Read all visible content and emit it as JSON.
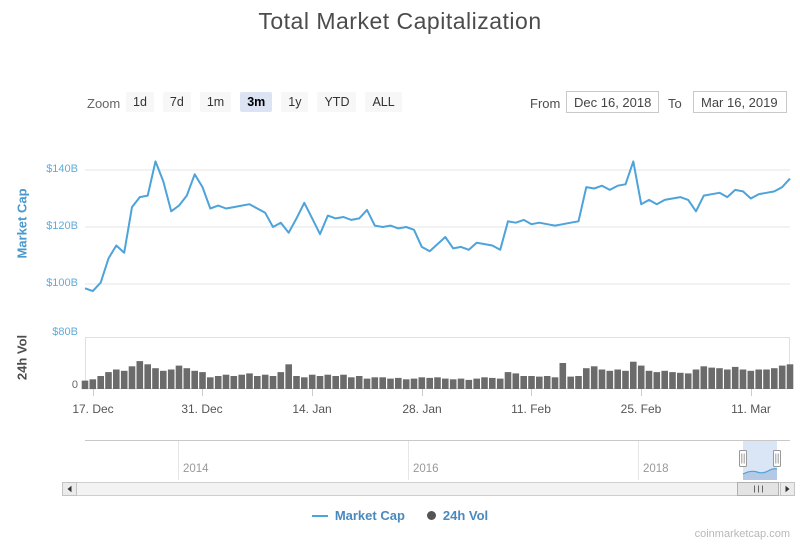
{
  "title": "Total Market Capitalization",
  "watermark": "coinmarketcap.com",
  "range_selector": {
    "zoom_label": "Zoom",
    "buttons": [
      {
        "label": "1d",
        "selected": false
      },
      {
        "label": "7d",
        "selected": false
      },
      {
        "label": "1m",
        "selected": false
      },
      {
        "label": "3m",
        "selected": true
      },
      {
        "label": "1y",
        "selected": false
      },
      {
        "label": "YTD",
        "selected": false
      },
      {
        "label": "ALL",
        "selected": false
      }
    ],
    "from_label": "From",
    "from_value": "Dec 16, 2018",
    "to_label": "To",
    "to_value": "Mar 16, 2019"
  },
  "legend": {
    "items": [
      {
        "label": "Market Cap",
        "marker": "line",
        "color": "#4da3da"
      },
      {
        "label": "24h Vol",
        "marker": "circle",
        "color": "#545454"
      }
    ]
  },
  "navigator": {
    "year_labels": [
      "2014",
      "2016",
      "2018"
    ]
  },
  "chart_data": [
    {
      "type": "line",
      "name": "Market Cap",
      "color": "#4da3da",
      "x_start": "Dec 16, 2018",
      "x_end": "Mar 16, 2019",
      "x_interval": "daily",
      "xticks": [
        "17. Dec",
        "31. Dec",
        "14. Jan",
        "28. Jan",
        "11. Feb",
        "25. Feb",
        "11. Mar"
      ],
      "ylabel": "Market Cap",
      "yticks": [
        "$100B",
        "$120B",
        "$140B"
      ],
      "ylim_billions": [
        94,
        145
      ],
      "grid": true,
      "values_billions": [
        98.5,
        97.5,
        100.5,
        109,
        113.5,
        111,
        127,
        130.5,
        131,
        143,
        136,
        125.5,
        127.5,
        131,
        138.5,
        134,
        126.5,
        127.5,
        126.5,
        127,
        127.5,
        128,
        126.5,
        125,
        120,
        121.5,
        118,
        123,
        128.5,
        123,
        117.5,
        124,
        123,
        123.5,
        122.5,
        123,
        126,
        120.5,
        120,
        120.5,
        119.5,
        120,
        119,
        113,
        111.5,
        114,
        116.5,
        112.5,
        113,
        112,
        114.5,
        114,
        113.5,
        112,
        122,
        121.5,
        122.5,
        121,
        121.5,
        121,
        120.5,
        121,
        121.5,
        122,
        134,
        133.5,
        134.5,
        133,
        134.5,
        135,
        143,
        128,
        129.5,
        128,
        129.5,
        130,
        130.5,
        129.5,
        125.5,
        131,
        131.5,
        132,
        130.5,
        133,
        132.5,
        130,
        131.5,
        132,
        132.5,
        134,
        137
      ]
    },
    {
      "type": "area",
      "name": "24h Vol",
      "color": "#6b6b6b",
      "x_start": "Dec 16, 2018",
      "x_end": "Mar 16, 2019",
      "x_interval": "daily",
      "ylabel": "24h Vol",
      "yticks": [
        "0",
        "$80B"
      ],
      "ylim_billions": [
        0,
        80
      ],
      "grid": false,
      "values_billions": [
        13,
        15,
        20,
        26,
        30,
        28,
        35,
        43,
        38,
        32,
        28,
        30,
        36,
        32,
        28,
        26,
        18,
        20,
        22,
        20,
        22,
        24,
        20,
        22,
        20,
        26,
        38,
        20,
        18,
        22,
        20,
        22,
        20,
        22,
        18,
        20,
        16,
        18,
        18,
        16,
        17,
        15,
        16,
        18,
        17,
        18,
        16,
        15,
        16,
        14,
        16,
        18,
        17,
        16,
        26,
        24,
        20,
        20,
        19,
        20,
        18,
        40,
        19,
        20,
        32,
        35,
        30,
        28,
        30,
        28,
        42,
        36,
        28,
        26,
        28,
        26,
        25,
        24,
        30,
        35,
        33,
        32,
        30,
        34,
        30,
        28,
        30,
        30,
        32,
        36,
        38
      ]
    }
  ]
}
